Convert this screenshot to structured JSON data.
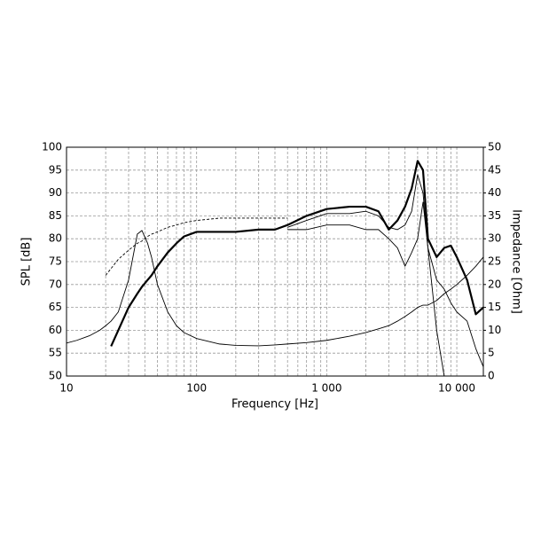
{
  "chart_data": {
    "type": "line",
    "xlabel": "Frequency [Hz]",
    "ylabel": "SPL [dB]",
    "y2label": "Impedance [Ohm]",
    "xscale": "log",
    "grid": true,
    "xlim": [
      10,
      16000
    ],
    "xticks": [
      10,
      100,
      {
        "value": 1000,
        "label": "1 000"
      },
      {
        "value": 10000,
        "label": "10 000"
      }
    ],
    "xgrid_minor": [
      20,
      30,
      40,
      50,
      60,
      70,
      80,
      90,
      200,
      300,
      400,
      500,
      600,
      700,
      800,
      900,
      2000,
      3000,
      4000,
      5000,
      6000,
      7000,
      8000,
      9000
    ],
    "ylim": [
      50,
      100
    ],
    "yticks": [
      50,
      55,
      60,
      65,
      70,
      75,
      80,
      85,
      90,
      95,
      100
    ],
    "y2lim": [
      0,
      50
    ],
    "y2ticks": [
      0,
      5,
      10,
      15,
      20,
      25,
      30,
      35,
      40,
      45,
      50
    ],
    "x": [
      10,
      12,
      15,
      18,
      20,
      22,
      25,
      30,
      35,
      38,
      42,
      45,
      50,
      60,
      70,
      80,
      100,
      150,
      200,
      300,
      400,
      500,
      700,
      1000,
      1500,
      2000,
      2500,
      3000,
      3500,
      4000,
      4500,
      5000,
      5500,
      6000,
      7000,
      8000,
      9000,
      10000,
      12000,
      14000,
      16000
    ],
    "series": [
      {
        "color": "#000000",
        "style": "bold",
        "values": [
          null,
          null,
          null,
          null,
          null,
          56.5,
          60,
          65,
          68,
          69.5,
          71,
          72,
          74,
          77,
          79,
          80.5,
          81.5,
          81.5,
          81.5,
          82,
          82,
          83,
          85,
          86.5,
          87,
          87,
          86,
          82,
          84,
          87,
          91,
          97,
          95,
          80,
          76,
          78,
          78.5,
          76,
          71,
          63.5,
          65
        ]
      },
      {
        "color": "#000000",
        "style": "thin",
        "values": [
          null,
          null,
          null,
          null,
          null,
          null,
          null,
          null,
          null,
          null,
          null,
          null,
          null,
          null,
          null,
          null,
          null,
          null,
          null,
          null,
          null,
          82.5,
          84,
          85.5,
          85.5,
          86,
          85,
          82.5,
          82,
          83,
          86,
          94,
          90,
          78,
          71,
          69,
          66,
          64,
          62,
          56,
          52
        ]
      },
      {
        "color": "#000000",
        "style": "thin",
        "values": [
          null,
          null,
          null,
          null,
          null,
          null,
          null,
          null,
          null,
          null,
          null,
          null,
          null,
          null,
          null,
          null,
          null,
          null,
          null,
          null,
          null,
          82,
          82,
          83,
          83,
          82,
          82,
          80,
          78,
          74,
          77,
          80,
          88,
          78,
          60,
          50,
          null,
          null,
          null,
          null,
          null
        ]
      },
      {
        "color": "#000000",
        "style": "dashed",
        "values": [
          null,
          null,
          null,
          null,
          72,
          73.5,
          75.5,
          77.5,
          79,
          79.5,
          80.5,
          81,
          81.5,
          82.5,
          83,
          83.5,
          84,
          84.5,
          84.5,
          84.5,
          84.5,
          84.5,
          null,
          null,
          null,
          null,
          null,
          null,
          null,
          null,
          null,
          null,
          null,
          null,
          null,
          null,
          null,
          null,
          null,
          null,
          null
        ]
      },
      {
        "color": "#000000",
        "style": "thin",
        "axis": "y2",
        "values": [
          7.2,
          7.8,
          8.8,
          10,
          11,
          12,
          14,
          21,
          31,
          31.8,
          29,
          26,
          20,
          14,
          11,
          9.5,
          8.2,
          7,
          6.7,
          6.6,
          6.8,
          7,
          7.3,
          7.8,
          8.7,
          9.5,
          10.3,
          11,
          12,
          13,
          14,
          15,
          15.5,
          15.5,
          16.5,
          18,
          19,
          20,
          22,
          24,
          26
        ]
      }
    ]
  }
}
